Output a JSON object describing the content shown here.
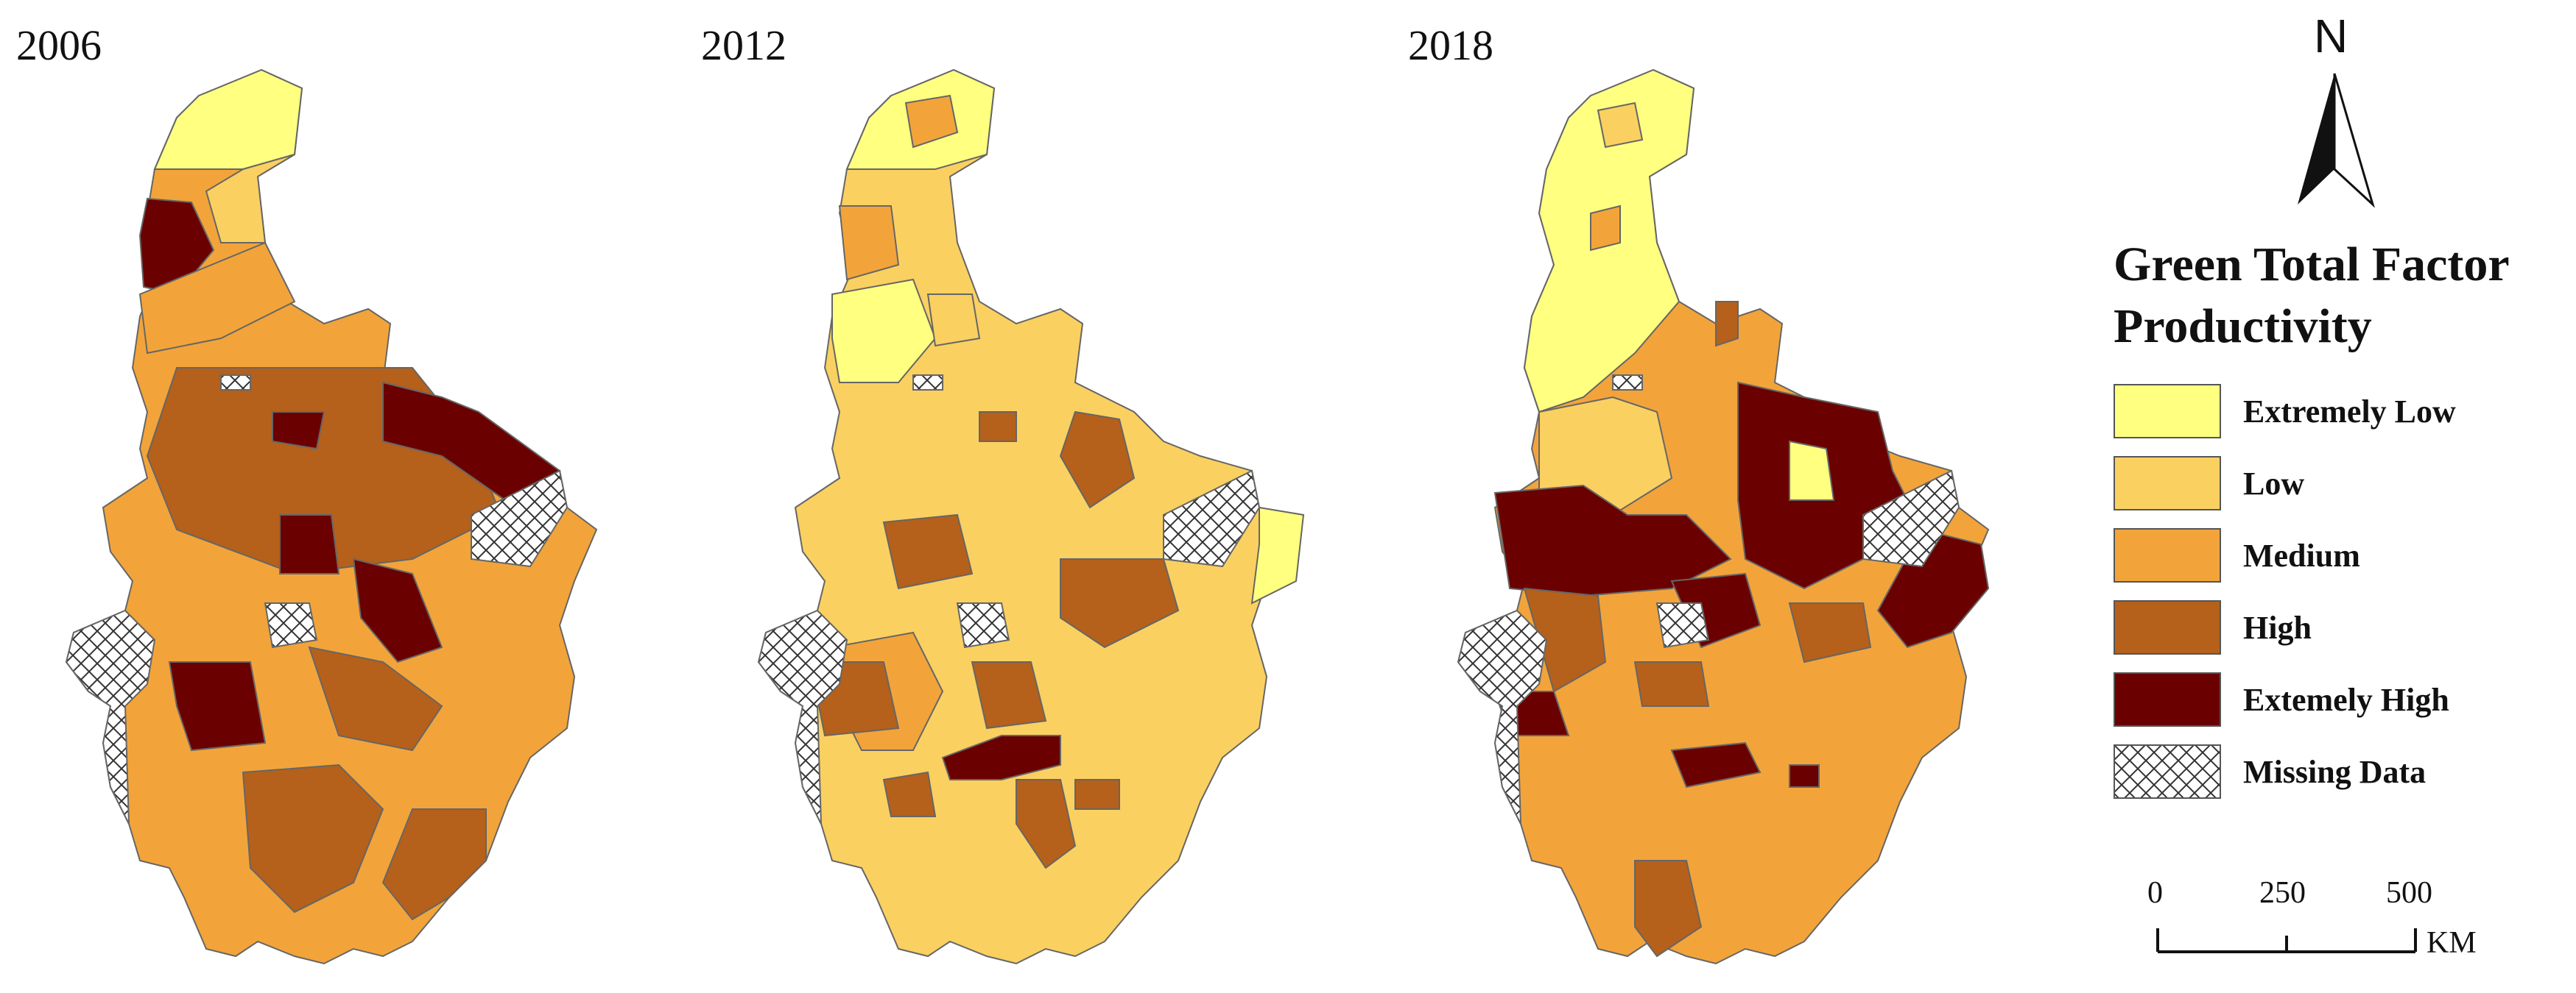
{
  "maps": [
    {
      "year": "2006"
    },
    {
      "year": "2012"
    },
    {
      "year": "2018"
    }
  ],
  "legend": {
    "title_line1": "Green Total Factor",
    "title_line2": "Productivity",
    "items": [
      {
        "label": "Extremely Low",
        "color": "#ffff80"
      },
      {
        "label": "Low",
        "color": "#fad061"
      },
      {
        "label": "Medium",
        "color": "#f2a43a"
      },
      {
        "label": "High",
        "color": "#b5601b"
      },
      {
        "label": "Extemely High",
        "color": "#6b0000"
      },
      {
        "label": "Missing Data",
        "pattern": "crosshatch"
      }
    ]
  },
  "north_arrow": {
    "label": "N"
  },
  "scale_bar": {
    "ticks": [
      "0",
      "250",
      "500"
    ],
    "unit": "KM"
  }
}
